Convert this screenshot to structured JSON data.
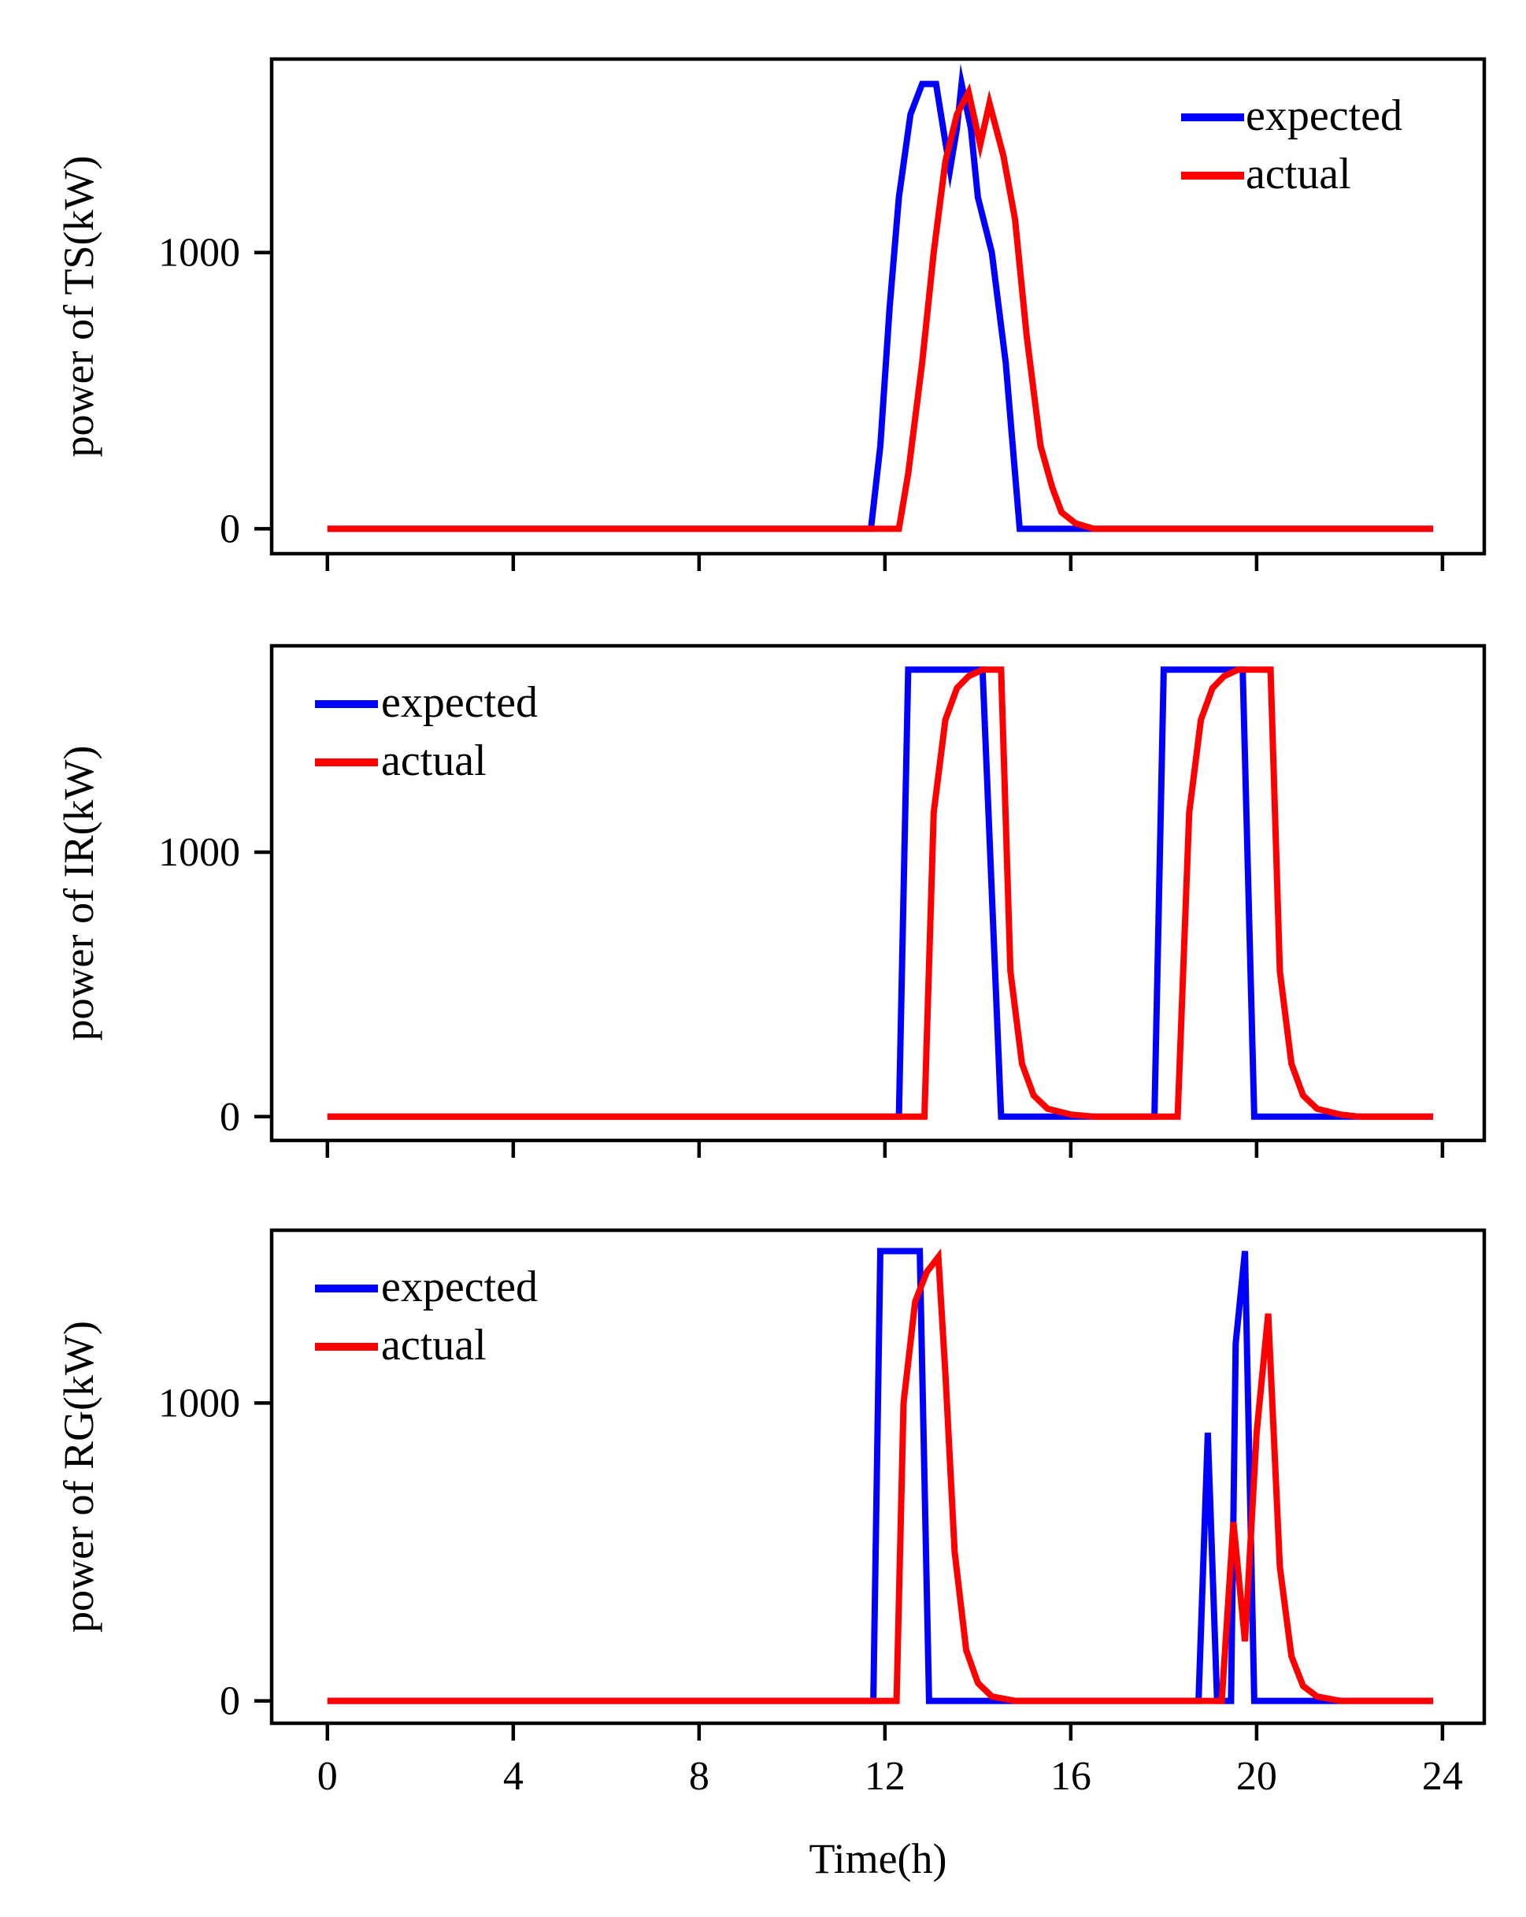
{
  "chart_data": [
    {
      "type": "line",
      "ylabel": "power of TS(kW)",
      "xlabel": "",
      "xlim": [
        -1.2,
        24.9
      ],
      "ylim": [
        -90,
        1700
      ],
      "x_ticks": [
        0,
        4,
        8,
        12,
        16,
        20,
        24
      ],
      "x_tick_labels_shown": false,
      "y_ticks": [
        0,
        1000
      ],
      "y_tick_labels": [
        "0",
        "1000"
      ],
      "legend_position": "top-right",
      "series": [
        {
          "name": "expected",
          "color": "#0000ff",
          "points": [
            [
              0,
              0
            ],
            [
              11.7,
              0
            ],
            [
              11.9,
              300
            ],
            [
              12.1,
              800
            ],
            [
              12.3,
              1200
            ],
            [
              12.55,
              1500
            ],
            [
              12.8,
              1610
            ],
            [
              13.1,
              1610
            ],
            [
              13.3,
              1400
            ],
            [
              13.4,
              1300
            ],
            [
              13.55,
              1450
            ],
            [
              13.65,
              1610
            ],
            [
              13.85,
              1450
            ],
            [
              14.0,
              1200
            ],
            [
              14.3,
              1000
            ],
            [
              14.6,
              600
            ],
            [
              14.9,
              0
            ],
            [
              23.8,
              0
            ]
          ]
        },
        {
          "name": "actual",
          "color": "#ff0000",
          "points": [
            [
              0,
              0
            ],
            [
              12.3,
              0
            ],
            [
              12.5,
              200
            ],
            [
              12.8,
              600
            ],
            [
              13.05,
              1000
            ],
            [
              13.3,
              1330
            ],
            [
              13.55,
              1500
            ],
            [
              13.8,
              1580
            ],
            [
              14.05,
              1390
            ],
            [
              14.25,
              1540
            ],
            [
              14.55,
              1350
            ],
            [
              14.8,
              1120
            ],
            [
              15.05,
              700
            ],
            [
              15.35,
              300
            ],
            [
              15.6,
              150
            ],
            [
              15.8,
              60
            ],
            [
              16.1,
              20
            ],
            [
              16.5,
              0
            ],
            [
              23.8,
              0
            ]
          ]
        }
      ]
    },
    {
      "type": "line",
      "ylabel": "power of IR(kW)",
      "xlabel": "",
      "xlim": [
        -1.2,
        24.9
      ],
      "ylim": [
        -90,
        1780
      ],
      "x_ticks": [
        0,
        4,
        8,
        12,
        16,
        20,
        24
      ],
      "x_tick_labels_shown": false,
      "y_ticks": [
        0,
        1000
      ],
      "y_tick_labels": [
        "0",
        "1000"
      ],
      "legend_position": "top-left",
      "series": [
        {
          "name": "expected",
          "color": "#0000ff",
          "points": [
            [
              0,
              0
            ],
            [
              12.3,
              0
            ],
            [
              12.5,
              1690
            ],
            [
              14.1,
              1690
            ],
            [
              14.5,
              0
            ],
            [
              17.8,
              0
            ],
            [
              18.0,
              1690
            ],
            [
              19.7,
              1690
            ],
            [
              19.95,
              0
            ],
            [
              23.8,
              0
            ]
          ]
        },
        {
          "name": "actual",
          "color": "#ff0000",
          "points": [
            [
              0,
              0
            ],
            [
              12.85,
              0
            ],
            [
              13.05,
              1150
            ],
            [
              13.3,
              1500
            ],
            [
              13.55,
              1620
            ],
            [
              13.8,
              1665
            ],
            [
              14.1,
              1690
            ],
            [
              14.5,
              1690
            ],
            [
              14.7,
              550
            ],
            [
              14.95,
              200
            ],
            [
              15.2,
              80
            ],
            [
              15.5,
              30
            ],
            [
              16.0,
              8
            ],
            [
              16.5,
              0
            ],
            [
              18.3,
              0
            ],
            [
              18.55,
              1150
            ],
            [
              18.8,
              1500
            ],
            [
              19.05,
              1620
            ],
            [
              19.3,
              1665
            ],
            [
              19.6,
              1690
            ],
            [
              20.3,
              1690
            ],
            [
              20.5,
              550
            ],
            [
              20.75,
              200
            ],
            [
              21.0,
              80
            ],
            [
              21.3,
              30
            ],
            [
              21.8,
              8
            ],
            [
              22.2,
              0
            ],
            [
              23.8,
              0
            ]
          ]
        }
      ]
    },
    {
      "type": "line",
      "ylabel": "power of RG(kW)",
      "xlabel": "Time(h)",
      "xlim": [
        -1.2,
        24.9
      ],
      "ylim": [
        -75,
        1580
      ],
      "x_ticks": [
        0,
        4,
        8,
        12,
        16,
        20,
        24
      ],
      "x_tick_labels": [
        "0",
        "4",
        "8",
        "12",
        "16",
        "20",
        "24"
      ],
      "x_tick_labels_shown": true,
      "y_ticks": [
        0,
        1000
      ],
      "y_tick_labels": [
        "0",
        "1000"
      ],
      "legend_position": "top-left",
      "series": [
        {
          "name": "expected",
          "color": "#0000ff",
          "points": [
            [
              0,
              0
            ],
            [
              11.75,
              0
            ],
            [
              11.9,
              1510
            ],
            [
              12.75,
              1510
            ],
            [
              12.95,
              0
            ],
            [
              18.75,
              0
            ],
            [
              18.95,
              900
            ],
            [
              19.15,
              0
            ],
            [
              19.45,
              0
            ],
            [
              19.55,
              1200
            ],
            [
              19.75,
              1510
            ],
            [
              19.95,
              0
            ],
            [
              23.8,
              0
            ]
          ]
        },
        {
          "name": "actual",
          "color": "#ff0000",
          "points": [
            [
              0,
              0
            ],
            [
              12.25,
              0
            ],
            [
              12.4,
              1000
            ],
            [
              12.65,
              1340
            ],
            [
              12.9,
              1440
            ],
            [
              13.15,
              1490
            ],
            [
              13.3,
              1100
            ],
            [
              13.5,
              500
            ],
            [
              13.75,
              170
            ],
            [
              14.0,
              60
            ],
            [
              14.3,
              15
            ],
            [
              14.8,
              0
            ],
            [
              19.25,
              0
            ],
            [
              19.5,
              600
            ],
            [
              19.75,
              200
            ],
            [
              20.0,
              900
            ],
            [
              20.25,
              1300
            ],
            [
              20.5,
              450
            ],
            [
              20.75,
              150
            ],
            [
              21.0,
              50
            ],
            [
              21.3,
              15
            ],
            [
              21.8,
              0
            ],
            [
              23.8,
              0
            ]
          ]
        }
      ]
    }
  ]
}
